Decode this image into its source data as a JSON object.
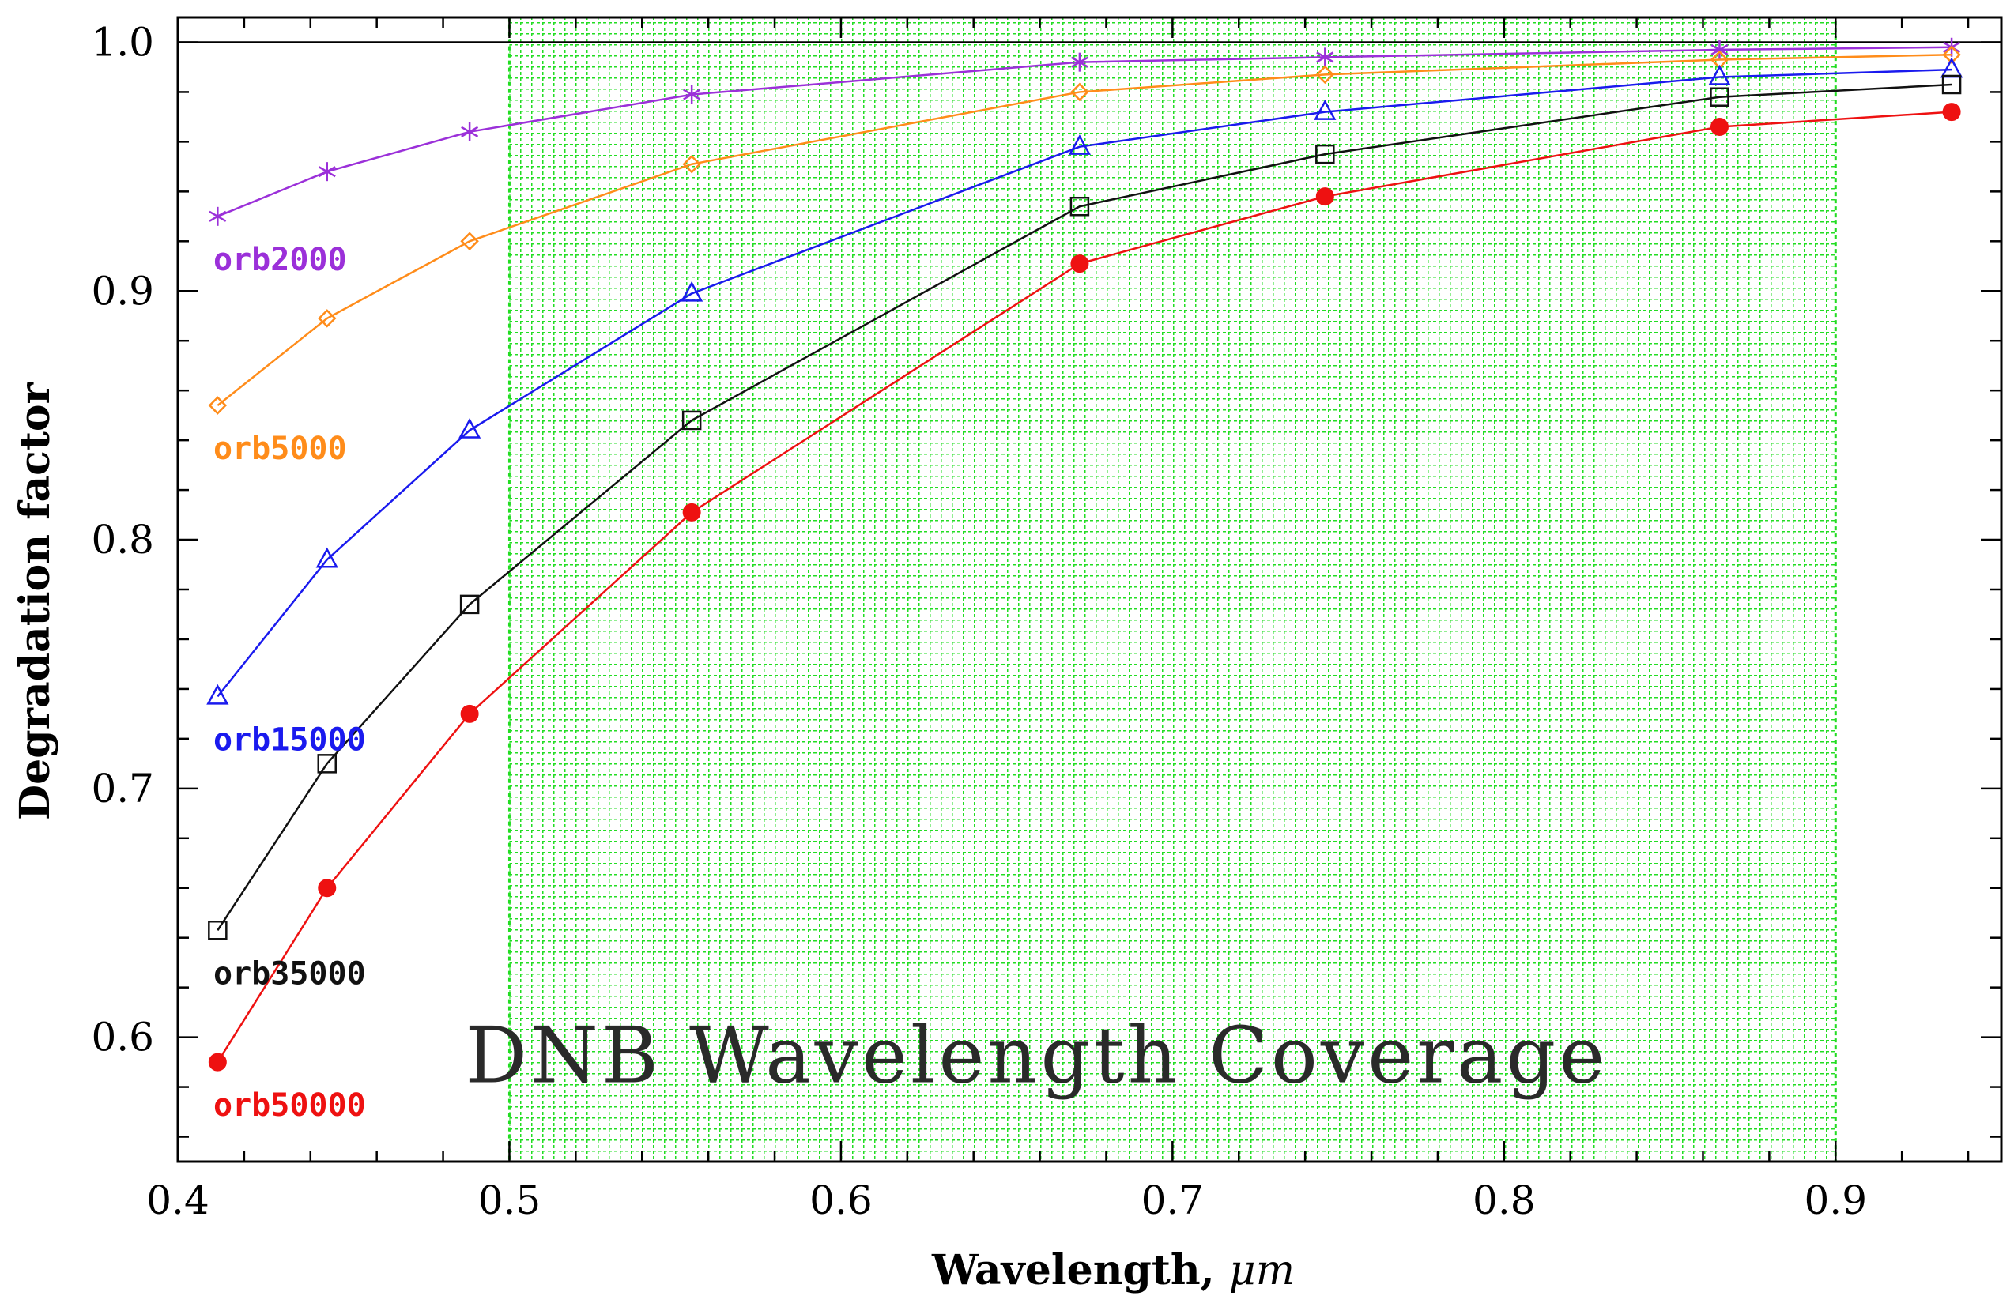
{
  "chart_data": {
    "type": "line",
    "title": "",
    "xlabel": "Wavelength, ",
    "xlabel_unit": "μm",
    "ylabel": "Degradation factor",
    "xlim": [
      0.4,
      0.95
    ],
    "ylim": [
      0.55,
      1.01
    ],
    "x_ticks": [
      0.4,
      0.5,
      0.6,
      0.7,
      0.8,
      0.9
    ],
    "x_tick_labels": [
      "0.4",
      "0.5",
      "0.6",
      "0.7",
      "0.8",
      "0.9"
    ],
    "y_ticks": [
      0.6,
      0.7,
      0.8,
      0.9,
      1.0
    ],
    "y_tick_labels": [
      "0.6",
      "0.7",
      "0.8",
      "0.9",
      "1.0"
    ],
    "reference_line": 1.0,
    "shaded_region": {
      "label": "DNB Wavelength Coverage",
      "x_range": [
        0.5,
        0.9
      ],
      "color": "#22dd22"
    },
    "x": [
      0.412,
      0.445,
      0.488,
      0.555,
      0.672,
      0.746,
      0.865,
      0.935
    ],
    "series": [
      {
        "name": "orb2000",
        "color": "#9b30d9",
        "marker": "asterisk",
        "values": [
          0.93,
          0.948,
          0.964,
          0.979,
          0.992,
          0.994,
          0.997,
          0.998
        ]
      },
      {
        "name": "orb5000",
        "color": "#ff8c1a",
        "marker": "diamond",
        "values": [
          0.854,
          0.889,
          0.92,
          0.951,
          0.98,
          0.987,
          0.993,
          0.995
        ]
      },
      {
        "name": "orb15000",
        "color": "#1a1aee",
        "marker": "triangle",
        "values": [
          0.737,
          0.792,
          0.844,
          0.899,
          0.958,
          0.972,
          0.986,
          0.989
        ]
      },
      {
        "name": "orb35000",
        "color": "#111111",
        "marker": "square",
        "values": [
          0.643,
          0.71,
          0.774,
          0.848,
          0.934,
          0.955,
          0.978,
          0.983
        ]
      },
      {
        "name": "orb50000",
        "color": "#ee1111",
        "marker": "circle",
        "values": [
          0.59,
          0.66,
          0.73,
          0.811,
          0.911,
          0.938,
          0.966,
          0.972
        ]
      }
    ]
  }
}
